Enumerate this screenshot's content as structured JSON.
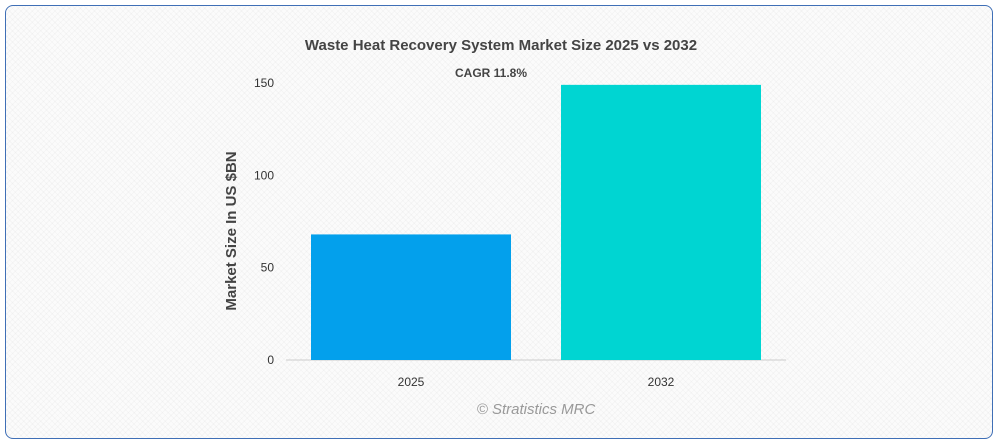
{
  "chart_data": {
    "type": "bar",
    "title": "Waste Heat Recovery System Market Size 2025 vs 2032",
    "annotation": "CAGR 11.8%",
    "categories": [
      "2025",
      "2032"
    ],
    "values": [
      68,
      149
    ],
    "colors": [
      "#03a0ec",
      "#00d5d2"
    ],
    "xlabel": "",
    "ylabel": "Market Size In US $BN",
    "ylim": [
      0,
      150
    ],
    "yticks": [
      0,
      50,
      100,
      150
    ],
    "grid": false,
    "legend": "none"
  },
  "credit": "© Stratistics MRC"
}
